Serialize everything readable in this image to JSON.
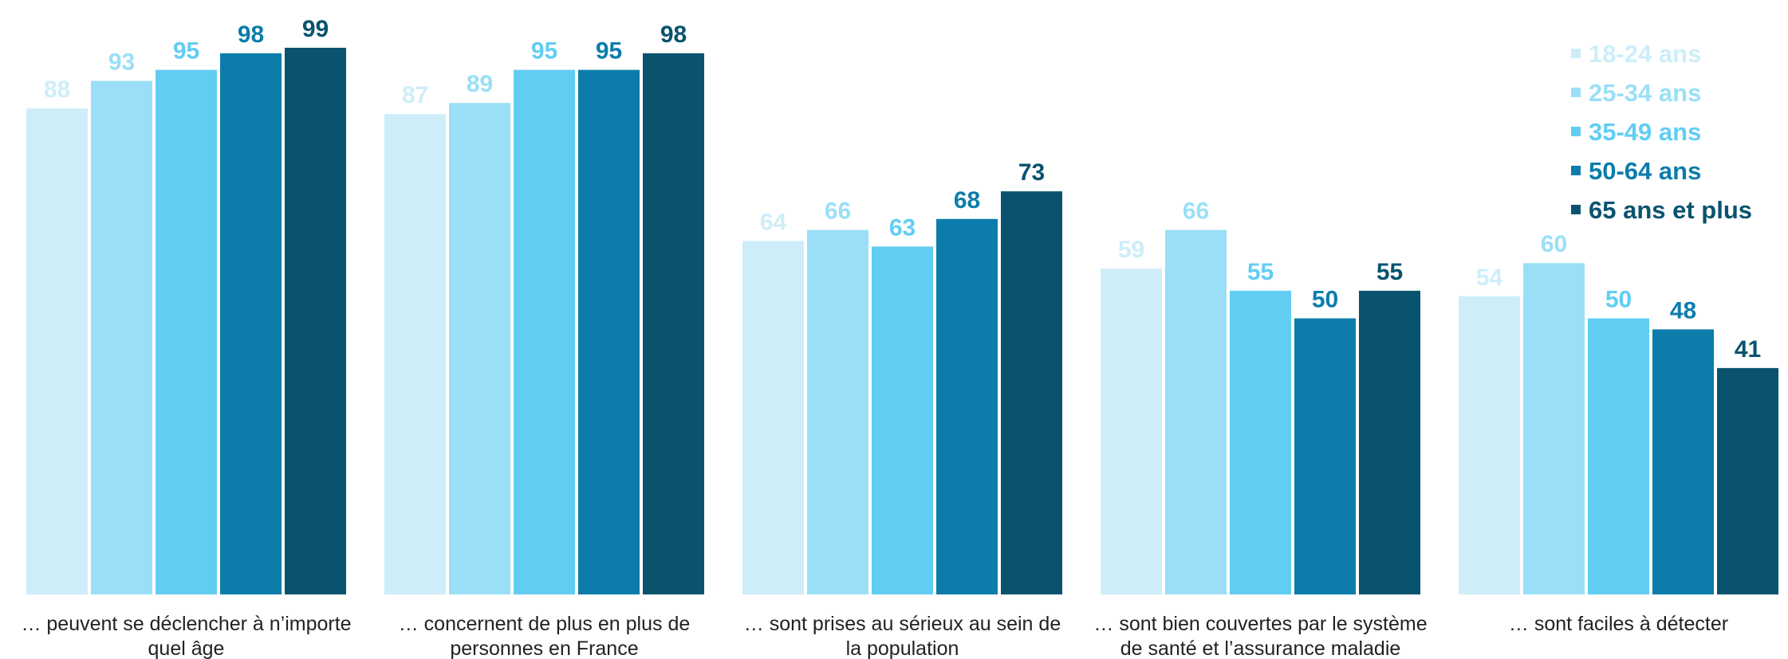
{
  "chart_data": {
    "type": "bar",
    "title": "",
    "xlabel": "",
    "ylabel": "",
    "ylim": [
      0,
      100
    ],
    "grid": false,
    "legend_position": "top-right",
    "categories": [
      [
        "… peuvent se déclencher à n’importe",
        "quel âge"
      ],
      [
        "… concernent de plus en plus de",
        "personnes en France"
      ],
      [
        "… sont prises au sérieux au sein de",
        "la population"
      ],
      [
        "… sont bien couvertes par le système",
        "de santé et l’assurance maladie"
      ],
      [
        "… sont faciles à détecter"
      ]
    ],
    "series": [
      {
        "name": "18-24 ans",
        "color": "#cdeef9",
        "values": [
          88,
          87,
          64,
          59,
          54
        ]
      },
      {
        "name": "25-34 ans",
        "color": "#9adff7",
        "values": [
          93,
          89,
          66,
          66,
          60
        ]
      },
      {
        "name": "35-49 ans",
        "color": "#62cdf3",
        "values": [
          95,
          95,
          63,
          55,
          50
        ]
      },
      {
        "name": "50-64 ans",
        "color": "#0c7dab",
        "values": [
          98,
          95,
          68,
          50,
          48
        ]
      },
      {
        "name": "65 ans et plus",
        "color": "#09536f",
        "values": [
          99,
          98,
          73,
          55,
          41
        ]
      }
    ]
  }
}
